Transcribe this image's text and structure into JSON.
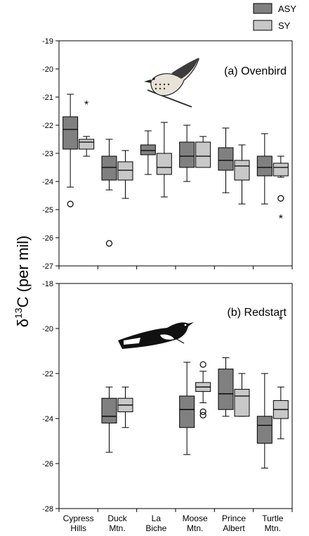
{
  "chart_data": {
    "type": "box",
    "ylabel_prefix": "δ",
    "ylabel_sup": "13",
    "ylabel_main": "C (per mil)",
    "categories": [
      "Cypress\nHills",
      "Duck\nMtn.",
      "La\nBiche",
      "Moose\nMtn.",
      "Prince\nAlbert",
      "Turtle\nMtn."
    ],
    "legend": [
      {
        "name": "ASY",
        "color": "#808080"
      },
      {
        "name": "SY",
        "color": "#c8c8c8"
      }
    ],
    "panels": [
      {
        "title": "(a) Ovenbird",
        "ylim": [
          -27,
          -19
        ],
        "yticks": [
          -27,
          -26,
          -25,
          -24,
          -23,
          -22,
          -21,
          -20,
          -19
        ],
        "icon": "ovenbird-bird-icon",
        "series": [
          {
            "name": "ASY",
            "boxes": [
              {
                "whisker_low": -24.2,
                "q1": -22.85,
                "median": -22.15,
                "q3": -21.7,
                "whisker_high": -20.9,
                "outliers": [
                  -24.8
                ],
                "extremes": []
              },
              {
                "whisker_low": -24.3,
                "q1": -23.95,
                "median": -23.5,
                "q3": -23.1,
                "whisker_high": -22.5,
                "outliers": [
                  -26.2
                ],
                "extremes": []
              },
              {
                "whisker_low": -23.75,
                "q1": -23.05,
                "median": -22.9,
                "q3": -22.7,
                "whisker_high": -22.2,
                "outliers": [],
                "extremes": []
              },
              {
                "whisker_low": -24.0,
                "q1": -23.5,
                "median": -23.1,
                "q3": -22.6,
                "whisker_high": -22.0,
                "outliers": [],
                "extremes": []
              },
              {
                "whisker_low": -24.4,
                "q1": -23.6,
                "median": -23.25,
                "q3": -22.8,
                "whisker_high": -22.1,
                "outliers": [],
                "extremes": []
              },
              {
                "whisker_low": -24.8,
                "q1": -23.8,
                "median": -23.5,
                "q3": -23.1,
                "whisker_high": -22.3,
                "outliers": [],
                "extremes": []
              }
            ]
          },
          {
            "name": "SY",
            "boxes": [
              {
                "whisker_low": -23.1,
                "q1": -22.85,
                "median": -22.6,
                "q3": -22.5,
                "whisker_high": -22.4,
                "outliers": [],
                "extremes": [
                  -21.25
                ]
              },
              {
                "whisker_low": -24.6,
                "q1": -23.95,
                "median": -23.6,
                "q3": -23.3,
                "whisker_high": -22.9,
                "outliers": [],
                "extremes": []
              },
              {
                "whisker_low": -24.55,
                "q1": -23.75,
                "median": -23.5,
                "q3": -23.0,
                "whisker_high": -21.9,
                "outliers": [],
                "extremes": []
              },
              {
                "whisker_low": -23.5,
                "q1": -23.5,
                "median": -23.1,
                "q3": -22.6,
                "whisker_high": -22.4,
                "outliers": [],
                "extremes": []
              },
              {
                "whisker_low": -24.8,
                "q1": -23.95,
                "median": -23.45,
                "q3": -23.25,
                "whisker_high": -22.7,
                "outliers": [],
                "extremes": []
              },
              {
                "whisker_low": -23.85,
                "q1": -23.8,
                "median": -23.5,
                "q3": -23.35,
                "whisker_high": -23.1,
                "outliers": [
                  -24.6
                ],
                "extremes": [
                  -25.3
                ]
              }
            ]
          }
        ]
      },
      {
        "title": "(b) Redstart",
        "ylim": [
          -28,
          -18
        ],
        "yticks": [
          -28,
          -26,
          -24,
          -22,
          -20,
          -18
        ],
        "icon": "redstart-bird-icon",
        "series": [
          {
            "name": "ASY",
            "boxes": [
              null,
              {
                "whisker_low": -25.5,
                "q1": -24.2,
                "median": -23.9,
                "q3": -23.1,
                "whisker_high": -22.6,
                "outliers": [],
                "extremes": []
              },
              null,
              {
                "whisker_low": -25.6,
                "q1": -24.4,
                "median": -23.6,
                "q3": -23.0,
                "whisker_high": -21.5,
                "outliers": [],
                "extremes": []
              },
              {
                "whisker_low": -23.9,
                "q1": -23.6,
                "median": -22.9,
                "q3": -21.8,
                "whisker_high": -21.3,
                "outliers": [],
                "extremes": []
              },
              {
                "whisker_low": -26.2,
                "q1": -25.1,
                "median": -24.3,
                "q3": -23.9,
                "whisker_high": -22.0,
                "outliers": [],
                "extremes": []
              }
            ]
          },
          {
            "name": "SY",
            "boxes": [
              null,
              {
                "whisker_low": -24.4,
                "q1": -23.7,
                "median": -23.4,
                "q3": -23.1,
                "whisker_high": -22.6,
                "outliers": [],
                "extremes": []
              },
              null,
              {
                "whisker_low": -23.3,
                "q1": -22.8,
                "median": -22.6,
                "q3": -22.4,
                "whisker_high": -21.9,
                "outliers": [
                  -21.6,
                  -23.7,
                  -23.85
                ],
                "extremes": []
              },
              {
                "whisker_low": -23.9,
                "q1": -23.9,
                "median": -23.0,
                "q3": -22.7,
                "whisker_high": -22.0,
                "outliers": [],
                "extremes": []
              },
              {
                "whisker_low": -24.9,
                "q1": -24.0,
                "median": -23.6,
                "q3": -23.2,
                "whisker_high": -22.6,
                "outliers": [],
                "extremes": [
                  -19.6
                ]
              }
            ]
          }
        ]
      }
    ]
  }
}
